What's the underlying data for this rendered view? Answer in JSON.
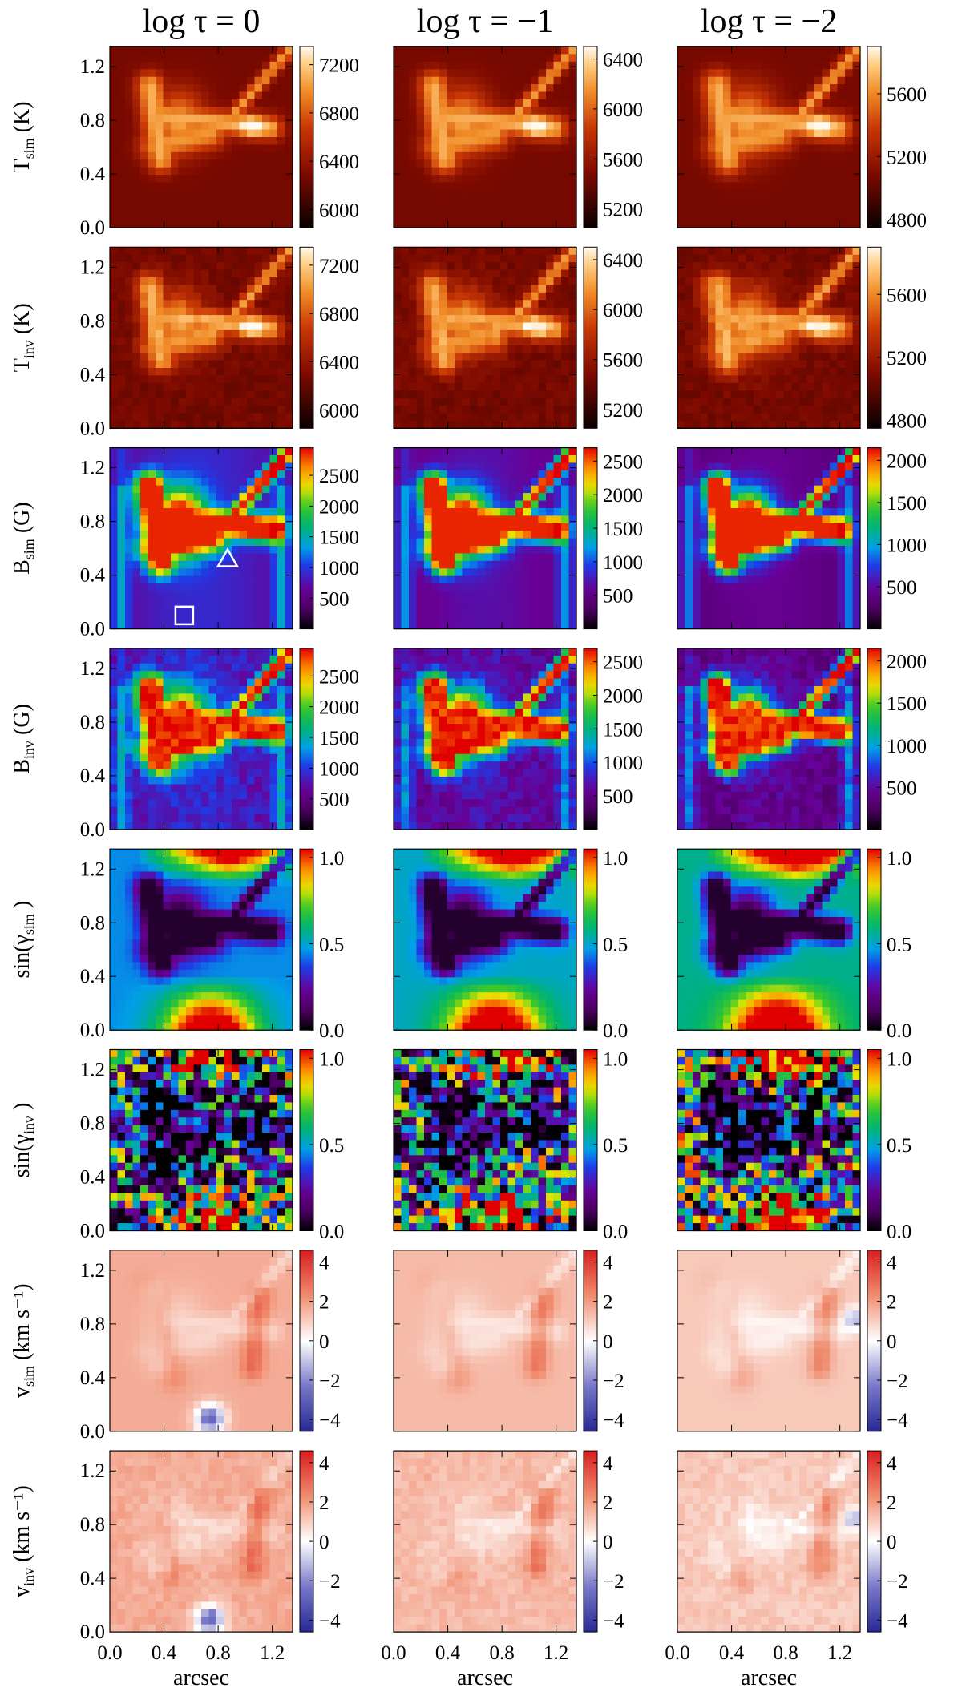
{
  "chart_data": {
    "type": "heatmap",
    "column_titles": [
      "log τ = 0",
      "log τ = −1",
      "log τ = −2"
    ],
    "xlabel": "arcsec",
    "xlim": [
      0.0,
      1.35
    ],
    "ylim": [
      0.0,
      1.35
    ],
    "x_ticks": [
      "0.0",
      "0.4",
      "0.8",
      "1.2"
    ],
    "y_ticks": [
      "0.0",
      "0.4",
      "0.8",
      "1.2"
    ],
    "rows": [
      {
        "label_main": "T",
        "label_sub": "sim",
        "label_unit": "(K)",
        "colormap": "heat",
        "kind": "temp",
        "noise": 0.0,
        "blue_spot": false,
        "colorbars": [
          {
            "ticks": [
              "6000",
              "6400",
              "6800",
              "7200"
            ],
            "range": [
              5850,
              7350
            ]
          },
          {
            "ticks": [
              "5200",
              "5600",
              "6000",
              "6400"
            ],
            "range": [
              5050,
              6500
            ]
          },
          {
            "ticks": [
              "4800",
              "5200",
              "5600"
            ],
            "range": [
              4750,
              5900
            ]
          }
        ]
      },
      {
        "label_main": "T",
        "label_sub": "inv",
        "label_unit": "(K)",
        "colormap": "heat",
        "kind": "temp",
        "noise": 0.08,
        "blue_spot": false,
        "colorbars": [
          {
            "ticks": [
              "6000",
              "6400",
              "6800",
              "7200"
            ],
            "range": [
              5850,
              7350
            ]
          },
          {
            "ticks": [
              "5200",
              "5600",
              "6000",
              "6400"
            ],
            "range": [
              5050,
              6500
            ]
          },
          {
            "ticks": [
              "4800",
              "5200",
              "5600"
            ],
            "range": [
              4750,
              5900
            ]
          }
        ]
      },
      {
        "label_main": "B",
        "label_sub": "sim",
        "label_unit": "(G)",
        "colormap": "rainbow",
        "kind": "field",
        "noise": 0.0,
        "blue_spot": false,
        "colorbars": [
          {
            "ticks": [
              "500",
              "1000",
              "1500",
              "2000",
              "2500"
            ],
            "range": [
              0,
              2950
            ]
          },
          {
            "ticks": [
              "500",
              "1000",
              "1500",
              "2000",
              "2500"
            ],
            "range": [
              0,
              2700
            ]
          },
          {
            "ticks": [
              "500",
              "1000",
              "1500",
              "2000"
            ],
            "range": [
              0,
              2150
            ]
          }
        ],
        "markers": [
          {
            "shape": "triangle",
            "x": 0.87,
            "y": 0.52
          },
          {
            "shape": "square",
            "x": 0.55,
            "y": 0.1
          }
        ]
      },
      {
        "label_main": "B",
        "label_sub": "inv",
        "label_unit": "(G)",
        "colormap": "rainbow",
        "kind": "field",
        "noise": 0.1,
        "blue_spot": false,
        "colorbars": [
          {
            "ticks": [
              "500",
              "1000",
              "1500",
              "2000",
              "2500"
            ],
            "range": [
              0,
              2950
            ]
          },
          {
            "ticks": [
              "500",
              "1000",
              "1500",
              "2000",
              "2500"
            ],
            "range": [
              0,
              2700
            ]
          },
          {
            "ticks": [
              "500",
              "1000",
              "1500",
              "2000"
            ],
            "range": [
              0,
              2150
            ]
          }
        ]
      },
      {
        "label_main": "sin(γ",
        "label_sub": "sim",
        "label_unit": ")",
        "colormap": "rainbow",
        "kind": "incl",
        "noise": 0.0,
        "blue_spot": false,
        "colorbars": [
          {
            "ticks": [
              "0.0",
              "0.5",
              "1.0"
            ],
            "range": [
              0.0,
              1.05
            ]
          },
          {
            "ticks": [
              "0.0",
              "0.5",
              "1.0"
            ],
            "range": [
              0.0,
              1.05
            ]
          },
          {
            "ticks": [
              "0.0",
              "0.5",
              "1.0"
            ],
            "range": [
              0.0,
              1.05
            ]
          }
        ]
      },
      {
        "label_main": "sin(γ",
        "label_sub": "inv",
        "label_unit": ")",
        "colormap": "rainbow",
        "kind": "incl",
        "noise": 0.55,
        "blue_spot": false,
        "colorbars": [
          {
            "ticks": [
              "0.0",
              "0.5",
              "1.0"
            ],
            "range": [
              0.0,
              1.05
            ]
          },
          {
            "ticks": [
              "0.0",
              "0.5",
              "1.0"
            ],
            "range": [
              0.0,
              1.05
            ]
          },
          {
            "ticks": [
              "0.0",
              "0.5",
              "1.0"
            ],
            "range": [
              0.0,
              1.05
            ]
          }
        ]
      },
      {
        "label_main": "v",
        "label_sub": "sim",
        "label_unit": "(km s⁻¹)",
        "colormap": "diverging",
        "kind": "vel",
        "noise": 0.0,
        "blue_spot": true,
        "colorbars": [
          {
            "ticks": [
              "−4",
              "−2",
              "0",
              "2",
              "4"
            ],
            "range": [
              -4.6,
              4.6
            ]
          },
          {
            "ticks": [
              "−4",
              "−2",
              "0",
              "2",
              "4"
            ],
            "range": [
              -4.6,
              4.6
            ]
          },
          {
            "ticks": [
              "−4",
              "−2",
              "0",
              "2",
              "4"
            ],
            "range": [
              -4.6,
              4.6
            ]
          }
        ]
      },
      {
        "label_main": "v",
        "label_sub": "inv",
        "label_unit": "(km s⁻¹)",
        "colormap": "diverging",
        "kind": "vel",
        "noise": 0.06,
        "blue_spot": true,
        "colorbars": [
          {
            "ticks": [
              "−4",
              "−2",
              "0",
              "2",
              "4"
            ],
            "range": [
              -4.6,
              4.6
            ]
          },
          {
            "ticks": [
              "−4",
              "−2",
              "0",
              "2",
              "4"
            ],
            "range": [
              -4.6,
              4.6
            ]
          },
          {
            "ticks": [
              "−4",
              "−2",
              "0",
              "2",
              "4"
            ],
            "range": [
              -4.6,
              4.6
            ]
          }
        ]
      }
    ]
  }
}
